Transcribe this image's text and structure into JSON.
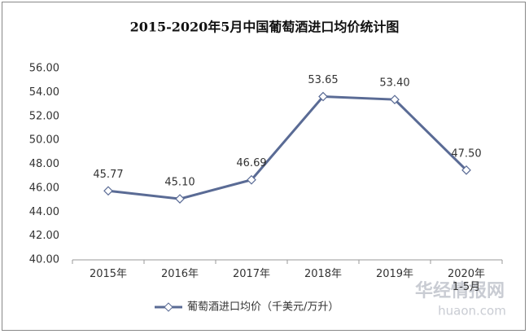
{
  "chart_data": {
    "type": "line",
    "title": "2015-2020年5月中国葡萄酒进口均价统计图",
    "categories": [
      "2015年",
      "2016年",
      "2017年",
      "2018年",
      "2019年",
      "2020年\n1-5月"
    ],
    "series": [
      {
        "name": "葡萄酒进口均价（千美元/万升）",
        "color": "#5a6b95",
        "values": [
          45.77,
          45.1,
          46.69,
          53.65,
          53.4,
          47.5
        ],
        "value_labels": [
          "45.77",
          "45.10",
          "46.69",
          "53.65",
          "53.40",
          "47.50"
        ]
      }
    ],
    "ylim": [
      40,
      56
    ],
    "yticks": [
      {
        "value": 40,
        "label": "40.00"
      },
      {
        "value": 42,
        "label": "42.00"
      },
      {
        "value": 44,
        "label": "44.00"
      },
      {
        "value": 46,
        "label": "46.00"
      },
      {
        "value": 48,
        "label": "48.00"
      },
      {
        "value": 50,
        "label": "50.00"
      },
      {
        "value": 52,
        "label": "52.00"
      },
      {
        "value": 54,
        "label": "54.00"
      },
      {
        "value": 56,
        "label": "56.00"
      }
    ],
    "grid": false,
    "legend": "bottom",
    "watermark": {
      "name": "华经情报网",
      "url": "huaon.com"
    }
  }
}
